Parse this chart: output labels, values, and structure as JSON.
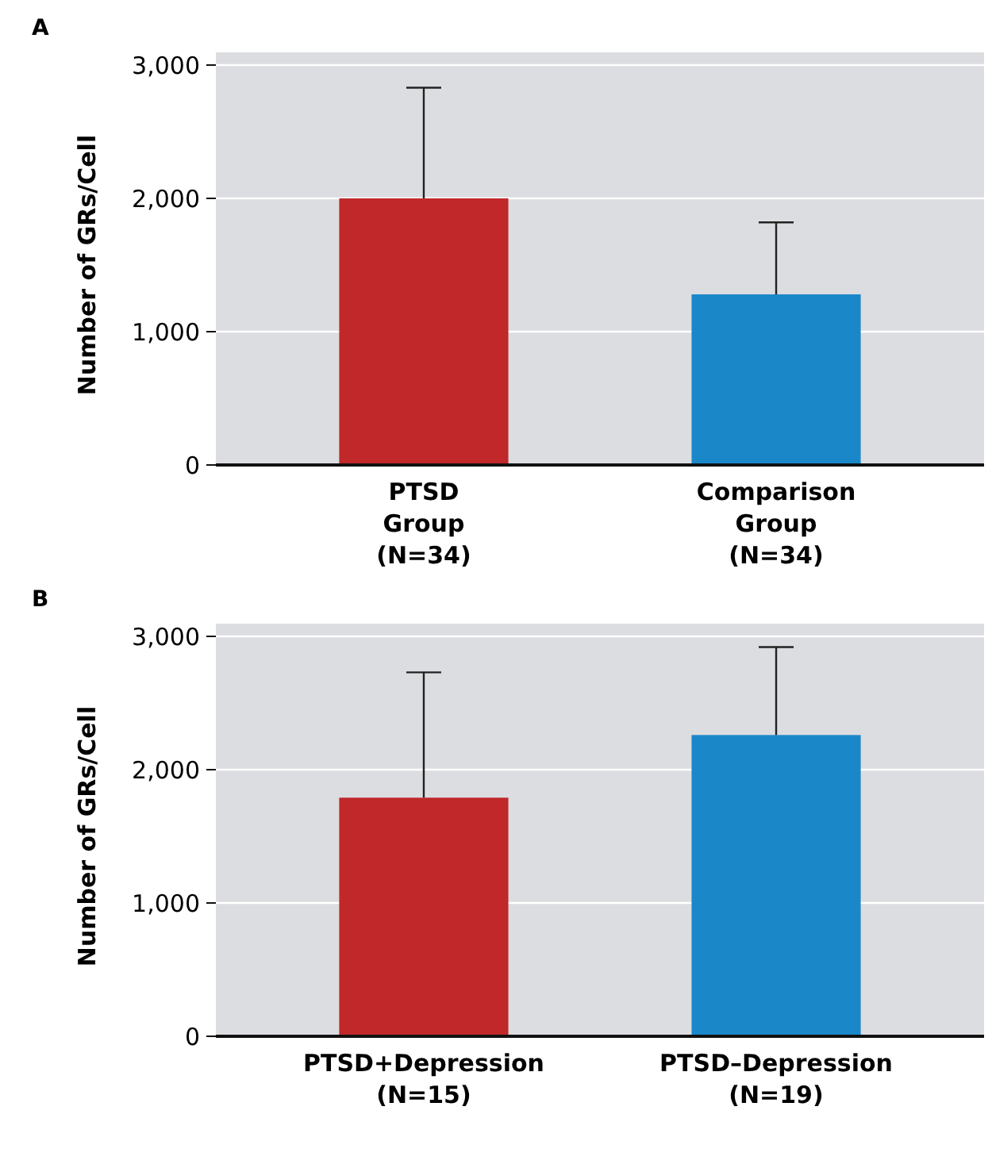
{
  "chart_data": [
    {
      "type": "bar",
      "title": "A",
      "ylabel": "Number of GRs/Cell",
      "categories": [
        "PTSD\nGroup\n(N=34)",
        "Comparison\nGroup\n(N=34)"
      ],
      "values": [
        2000,
        1280
      ],
      "colors": [
        "#c0282a",
        "#1a87c9"
      ],
      "errors": [
        [
          2000,
          2830
        ],
        [
          1280,
          1820
        ]
      ],
      "ylim": [
        0,
        3000
      ],
      "yticks": [
        {
          "value": 0,
          "label": "0"
        },
        {
          "value": 1000,
          "label": "1,000"
        },
        {
          "value": 2000,
          "label": "2,000"
        },
        {
          "value": 3000,
          "label": "3,000"
        }
      ],
      "grid": "y"
    },
    {
      "type": "bar",
      "title": "B",
      "ylabel": "Number of GRs/Cell",
      "categories": [
        "PTSD+Depression\n(N=15)",
        "PTSD–Depression\n(N=19)"
      ],
      "values": [
        1790,
        2260
      ],
      "colors": [
        "#c0282a",
        "#1a87c9"
      ],
      "errors": [
        [
          1790,
          2730
        ],
        [
          2260,
          2920
        ]
      ],
      "ylim": [
        0,
        3000
      ],
      "yticks": [
        {
          "value": 0,
          "label": "0"
        },
        {
          "value": 1000,
          "label": "1,000"
        },
        {
          "value": 2000,
          "label": "2,000"
        },
        {
          "value": 3000,
          "label": "3,000"
        }
      ],
      "grid": "y"
    }
  ]
}
